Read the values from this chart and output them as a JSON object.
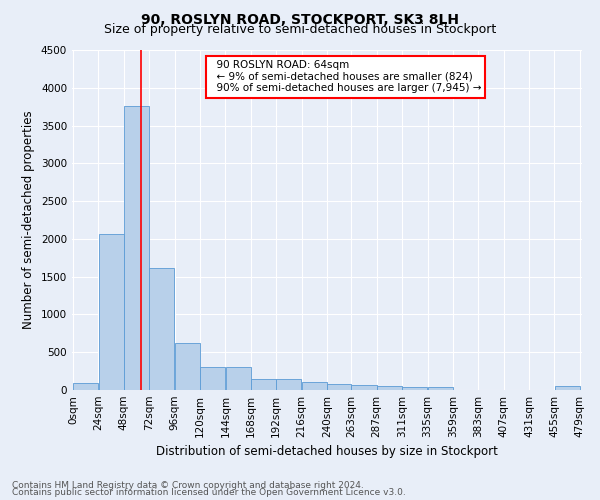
{
  "title": "90, ROSLYN ROAD, STOCKPORT, SK3 8LH",
  "subtitle": "Size of property relative to semi-detached houses in Stockport",
  "xlabel": "Distribution of semi-detached houses by size in Stockport",
  "ylabel": "Number of semi-detached properties",
  "footnote1": "Contains HM Land Registry data © Crown copyright and database right 2024.",
  "footnote2": "Contains public sector information licensed under the Open Government Licence v3.0.",
  "annotation_line1": "90 ROSLYN ROAD: 64sqm",
  "annotation_line2": "← 9% of semi-detached houses are smaller (824)",
  "annotation_line3": "90% of semi-detached houses are larger (7,945) →",
  "property_size_sqm": 64,
  "bin_edges": [
    0,
    24,
    48,
    72,
    96,
    120,
    144,
    168,
    192,
    216,
    240,
    263,
    287,
    311,
    335,
    359,
    383,
    407,
    431,
    455,
    479
  ],
  "bar_heights": [
    90,
    2060,
    3760,
    1620,
    620,
    300,
    310,
    150,
    150,
    105,
    80,
    60,
    50,
    45,
    40,
    5,
    5,
    5,
    5,
    50
  ],
  "bar_color": "#b8d0ea",
  "bar_edge_color": "#5b9bd5",
  "vline_color": "red",
  "vline_x": 64,
  "ylim": [
    0,
    4500
  ],
  "yticks": [
    0,
    500,
    1000,
    1500,
    2000,
    2500,
    3000,
    3500,
    4000,
    4500
  ],
  "xtick_labels": [
    "0sqm",
    "24sqm",
    "48sqm",
    "72sqm",
    "96sqm",
    "120sqm",
    "144sqm",
    "168sqm",
    "192sqm",
    "216sqm",
    "240sqm",
    "263sqm",
    "287sqm",
    "311sqm",
    "335sqm",
    "359sqm",
    "383sqm",
    "407sqm",
    "431sqm",
    "455sqm",
    "479sqm"
  ],
  "bg_color": "#e8eef8",
  "plot_bg_color": "#e8eef8",
  "grid_color": "#ffffff",
  "annotation_box_facecolor": "white",
  "annotation_box_edgecolor": "red",
  "title_fontsize": 10,
  "subtitle_fontsize": 9,
  "axis_label_fontsize": 8.5,
  "tick_fontsize": 7.5,
  "annotation_fontsize": 7.5,
  "footnote_fontsize": 6.5
}
